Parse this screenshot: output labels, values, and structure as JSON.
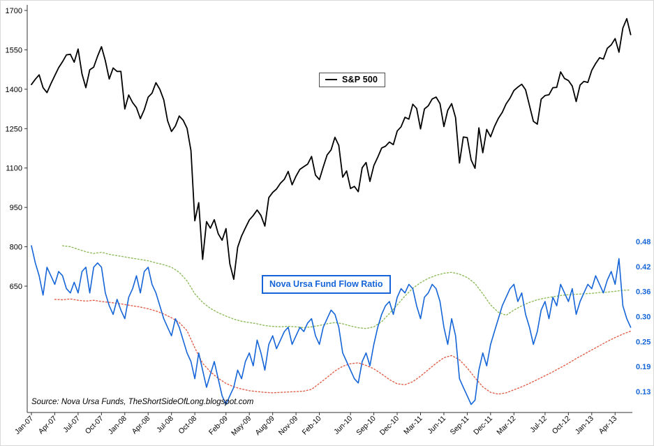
{
  "footer": {
    "source": "Source: Nova Ursa Funds, TheShortSideOfLong.blogspot.com"
  },
  "colors": {
    "sp500": "#000000",
    "ratio": "#1565d8",
    "green_band": "#8fbc5a",
    "red_band": "#e2604a",
    "left_axis_text": "#000000",
    "right_axis_text": "#1565d8",
    "axis_line": "#333333"
  },
  "chart_data": {
    "type": "line",
    "title": "",
    "x_axis": {
      "unit": "months since Jan-2007",
      "tick_months": [
        0,
        3,
        6,
        9,
        12,
        15,
        18,
        21,
        25,
        28,
        31,
        34,
        37,
        41,
        44,
        47,
        50,
        53,
        56,
        59,
        62,
        66,
        69,
        72,
        75
      ],
      "tick_labels": [
        "Jan-07",
        "Apr-07",
        "Jul-07",
        "Oct-07",
        "Jan-08",
        "Apr-08",
        "Jul-08",
        "Oct-08",
        "Feb-09",
        "May-09",
        "Aug-09",
        "Nov-09",
        "Feb-10",
        "Jun-10",
        "Sep-10",
        "Dec-10",
        "Mar-11",
        "Jun-11",
        "Sep-11",
        "Dec-11",
        "Mar-12",
        "Jul-12",
        "Oct-12",
        "Jan-13",
        "Apr-13"
      ]
    },
    "left_axis": {
      "min": 650,
      "max": 1700,
      "ticks": [
        1700,
        1550,
        1400,
        1250,
        1100,
        950,
        800,
        650
      ]
    },
    "right_axis": {
      "min": 0.13,
      "max": 0.48,
      "tick_labels": [
        "0.48",
        "0.42",
        "0.36",
        "0.30",
        "0.25",
        "0.19",
        "0.13"
      ]
    },
    "legend_position": "top-center-box",
    "grid": false,
    "series": [
      {
        "id": "green-dotted-band",
        "name": "",
        "axis": "right",
        "color": "#8fbc5a",
        "dash": "dotted",
        "width": 1.4,
        "start_month": 4,
        "step_months": 1,
        "values": [
          0.47,
          0.468,
          0.462,
          0.456,
          0.452,
          0.455,
          0.45,
          0.447,
          0.444,
          0.441,
          0.438,
          0.435,
          0.43,
          0.426,
          0.42,
          0.408,
          0.388,
          0.358,
          0.338,
          0.324,
          0.314,
          0.306,
          0.299,
          0.294,
          0.291,
          0.288,
          0.284,
          0.282,
          0.281,
          0.282,
          0.281,
          0.279,
          0.281,
          0.284,
          0.288,
          0.291,
          0.288,
          0.283,
          0.279,
          0.277,
          0.281,
          0.293,
          0.312,
          0.332,
          0.353,
          0.371,
          0.384,
          0.394,
          0.401,
          0.406,
          0.408,
          0.404,
          0.396,
          0.382,
          0.358,
          0.332,
          0.315,
          0.308,
          0.32,
          0.33,
          0.338,
          0.344,
          0.348,
          0.351,
          0.354,
          0.356,
          0.357,
          0.358,
          0.359,
          0.361,
          0.362,
          0.364,
          0.366,
          0.367
        ]
      },
      {
        "id": "red-dotted-band",
        "name": "",
        "axis": "right",
        "color": "#e2604a",
        "dash": "dotted",
        "width": 1.4,
        "start_month": 3,
        "step_months": 1,
        "values": [
          0.345,
          0.344,
          0.346,
          0.343,
          0.341,
          0.343,
          0.34,
          0.338,
          0.336,
          0.333,
          0.33,
          0.327,
          0.323,
          0.318,
          0.311,
          0.302,
          0.291,
          0.272,
          0.232,
          0.196,
          0.176,
          0.161,
          0.149,
          0.141,
          0.136,
          0.132,
          0.13,
          0.128,
          0.127,
          0.128,
          0.129,
          0.13,
          0.131,
          0.135,
          0.149,
          0.163,
          0.178,
          0.189,
          0.195,
          0.197,
          0.191,
          0.183,
          0.171,
          0.158,
          0.148,
          0.146,
          0.153,
          0.166,
          0.181,
          0.196,
          0.209,
          0.214,
          0.204,
          0.185,
          0.162,
          0.141,
          0.128,
          0.124,
          0.127,
          0.134,
          0.141,
          0.149,
          0.158,
          0.167,
          0.176,
          0.186,
          0.196,
          0.207,
          0.217,
          0.227,
          0.237,
          0.247,
          0.256,
          0.264,
          0.271
        ]
      },
      {
        "id": "nova-ursa-fund-flow-ratio",
        "name": "Nova Ursa Fund Flow Ratio",
        "axis": "right",
        "color": "#1565d8",
        "dash": "solid",
        "width": 1.6,
        "start_month": 0,
        "step_months": 0.5,
        "values": [
          0.47,
          0.43,
          0.4,
          0.355,
          0.42,
          0.4,
          0.38,
          0.41,
          0.4,
          0.37,
          0.36,
          0.385,
          0.36,
          0.41,
          0.42,
          0.36,
          0.42,
          0.43,
          0.42,
          0.36,
          0.33,
          0.31,
          0.345,
          0.32,
          0.3,
          0.35,
          0.37,
          0.4,
          0.36,
          0.41,
          0.42,
          0.38,
          0.36,
          0.33,
          0.3,
          0.28,
          0.26,
          0.3,
          0.28,
          0.25,
          0.22,
          0.2,
          0.16,
          0.22,
          0.18,
          0.14,
          0.17,
          0.2,
          0.16,
          0.12,
          0.1,
          0.12,
          0.14,
          0.18,
          0.16,
          0.2,
          0.22,
          0.19,
          0.25,
          0.22,
          0.18,
          0.24,
          0.26,
          0.23,
          0.25,
          0.27,
          0.28,
          0.24,
          0.26,
          0.28,
          0.27,
          0.29,
          0.3,
          0.26,
          0.24,
          0.28,
          0.3,
          0.32,
          0.31,
          0.28,
          0.22,
          0.2,
          0.18,
          0.16,
          0.15,
          0.2,
          0.22,
          0.19,
          0.24,
          0.28,
          0.31,
          0.33,
          0.34,
          0.31,
          0.35,
          0.37,
          0.36,
          0.38,
          0.37,
          0.33,
          0.3,
          0.35,
          0.36,
          0.38,
          0.37,
          0.34,
          0.28,
          0.24,
          0.3,
          0.26,
          0.16,
          0.14,
          0.12,
          0.1,
          0.11,
          0.18,
          0.22,
          0.19,
          0.24,
          0.27,
          0.3,
          0.33,
          0.35,
          0.37,
          0.38,
          0.34,
          0.36,
          0.31,
          0.28,
          0.24,
          0.27,
          0.32,
          0.34,
          0.3,
          0.35,
          0.33,
          0.38,
          0.36,
          0.34,
          0.37,
          0.31,
          0.34,
          0.36,
          0.38,
          0.37,
          0.4,
          0.38,
          0.36,
          0.39,
          0.41,
          0.38,
          0.44,
          0.33,
          0.3,
          0.28
        ]
      },
      {
        "id": "sp500",
        "name": "S&P 500",
        "axis": "left",
        "color": "#000000",
        "dash": "solid",
        "width": 1.8,
        "start_month": 0,
        "step_months": 0.5,
        "values": [
          1418,
          1438,
          1455,
          1406,
          1387,
          1421,
          1452,
          1482,
          1505,
          1531,
          1533,
          1503,
          1553,
          1458,
          1406,
          1474,
          1484,
          1526,
          1562,
          1509,
          1439,
          1481,
          1468,
          1468,
          1325,
          1378,
          1349,
          1330,
          1288,
          1322,
          1370,
          1385,
          1425,
          1400,
          1360,
          1280,
          1239,
          1260,
          1298,
          1282,
          1251,
          1166,
          899,
          968,
          752,
          896,
          871,
          903,
          850,
          825,
          869,
          735,
          676,
          798,
          841,
          872,
          902,
          919,
          940,
          919,
          879,
          987,
          1007,
          1020,
          1042,
          1057,
          1087,
          1036,
          1069,
          1095,
          1105,
          1115,
          1144,
          1073,
          1056,
          1104,
          1150,
          1169,
          1217,
          1186,
          1065,
          1089,
          1022,
          1030,
          1010,
          1101,
          1121,
          1049,
          1109,
          1141,
          1176,
          1183,
          1199,
          1189,
          1241,
          1257,
          1293,
          1286,
          1343,
          1327,
          1249,
          1325,
          1337,
          1363,
          1370,
          1345,
          1258,
          1320,
          1345,
          1292,
          1119,
          1218,
          1216,
          1131,
          1099,
          1253,
          1158,
          1247,
          1219,
          1258,
          1289,
          1312,
          1344,
          1366,
          1395,
          1408,
          1419,
          1398,
          1338,
          1278,
          1267,
          1362,
          1376,
          1379,
          1406,
          1407,
          1466,
          1441,
          1433,
          1412,
          1353,
          1416,
          1430,
          1426,
          1472,
          1498,
          1520,
          1515,
          1556,
          1569,
          1593,
          1541,
          1633,
          1669,
          1608
        ]
      }
    ]
  }
}
